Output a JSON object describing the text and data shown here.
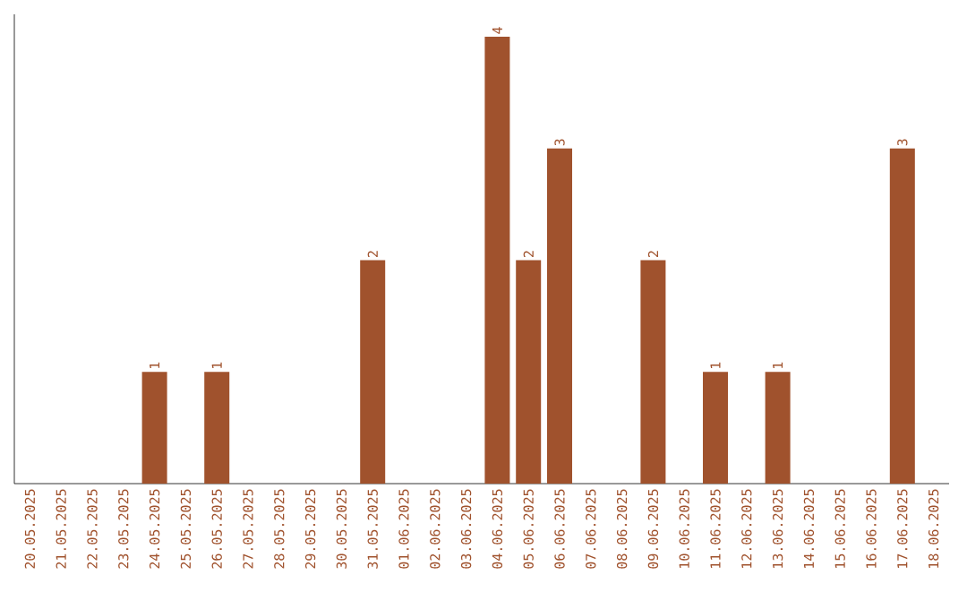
{
  "chart_data": {
    "type": "bar",
    "color": "#a0522d",
    "categories": [
      "20.05.2025",
      "21.05.2025",
      "22.05.2025",
      "23.05.2025",
      "24.05.2025",
      "25.05.2025",
      "26.05.2025",
      "27.05.2025",
      "28.05.2025",
      "29.05.2025",
      "30.05.2025",
      "31.05.2025",
      "01.06.2025",
      "02.06.2025",
      "03.06.2025",
      "04.06.2025",
      "05.06.2025",
      "06.06.2025",
      "07.06.2025",
      "08.06.2025",
      "09.06.2025",
      "10.06.2025",
      "11.06.2025",
      "12.06.2025",
      "13.06.2025",
      "14.06.2025",
      "15.06.2025",
      "16.06.2025",
      "17.06.2025",
      "18.06.2025"
    ],
    "values": [
      0,
      0,
      0,
      0,
      1,
      0,
      1,
      0,
      0,
      0,
      0,
      2,
      0,
      0,
      0,
      4,
      2,
      3,
      0,
      0,
      2,
      0,
      1,
      0,
      1,
      0,
      0,
      0,
      3,
      0
    ],
    "value_labels": [
      null,
      null,
      null,
      null,
      "1",
      null,
      "1",
      null,
      null,
      null,
      null,
      "2",
      null,
      null,
      null,
      "4",
      "2",
      "3",
      null,
      null,
      "2",
      null,
      "1",
      null,
      "1",
      null,
      null,
      null,
      "3",
      null
    ],
    "data_labels": false
  }
}
